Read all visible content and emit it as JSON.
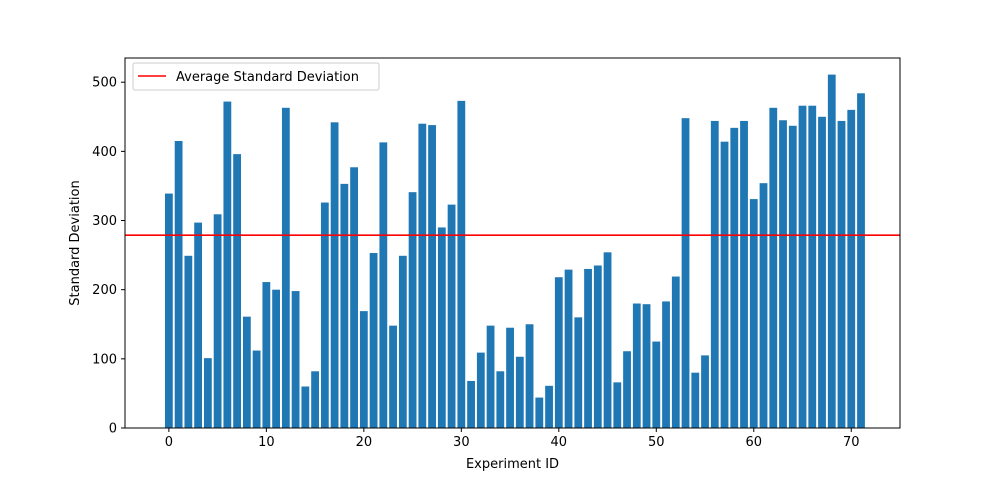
{
  "chart_data": {
    "type": "bar",
    "title": "",
    "xlabel": "Experiment ID",
    "ylabel": "Standard Deviation",
    "xlim": [
      -4.5,
      75
    ],
    "ylim": [
      0,
      535
    ],
    "xticks": [
      0,
      10,
      20,
      30,
      40,
      50,
      60,
      70
    ],
    "yticks": [
      0,
      100,
      200,
      300,
      400,
      500
    ],
    "grid": false,
    "legend_position": "top-left",
    "bar_color": "#1f77b4",
    "x": [
      0,
      1,
      2,
      3,
      4,
      5,
      6,
      7,
      8,
      9,
      10,
      11,
      12,
      13,
      14,
      15,
      16,
      17,
      18,
      19,
      20,
      21,
      22,
      23,
      24,
      25,
      26,
      27,
      28,
      29,
      30,
      31,
      32,
      33,
      34,
      35,
      36,
      37,
      38,
      39,
      40,
      41,
      42,
      43,
      44,
      45,
      46,
      47,
      48,
      49,
      50,
      51,
      52,
      53,
      54,
      55,
      56,
      57,
      58,
      59,
      60,
      61,
      62,
      63,
      64,
      65,
      66,
      67,
      68,
      69,
      70,
      71
    ],
    "values": [
      339,
      415,
      249,
      297,
      101,
      309,
      472,
      396,
      161,
      112,
      211,
      200,
      463,
      198,
      60,
      82,
      326,
      442,
      353,
      377,
      169,
      253,
      413,
      148,
      249,
      341,
      440,
      438,
      290,
      323,
      473,
      68,
      109,
      148,
      82,
      145,
      103,
      150,
      44,
      61,
      218,
      229,
      160,
      230,
      235,
      254,
      66,
      111,
      180,
      179,
      125,
      183,
      219,
      448,
      80,
      105,
      444,
      414,
      434,
      444,
      331,
      354,
      463,
      445,
      437,
      466,
      466,
      450,
      511,
      444,
      460,
      484
    ],
    "reference_line": {
      "name": "Average Standard Deviation",
      "value": 278.8,
      "color": "#ff0000"
    }
  }
}
